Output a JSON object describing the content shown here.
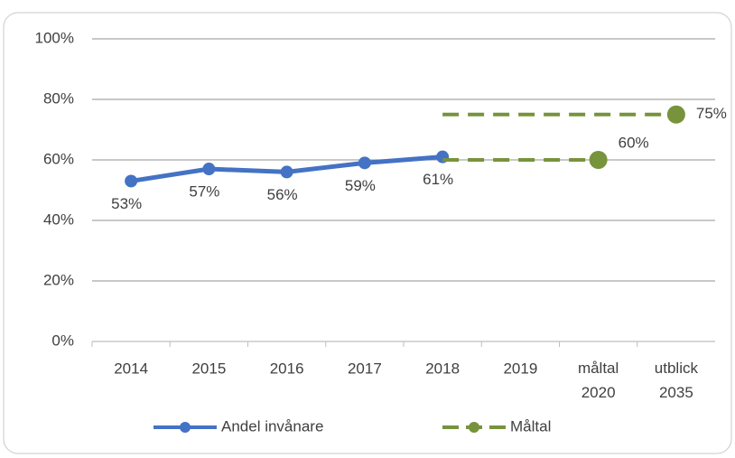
{
  "chart_data": {
    "type": "line",
    "categories": [
      "2014",
      "2015",
      "2016",
      "2017",
      "2018",
      "2019",
      "måltal 2020",
      "utblick 2035"
    ],
    "series": [
      {
        "name": "Andel invånare",
        "color": "#4472c4",
        "dash": false,
        "values": [
          53,
          57,
          56,
          59,
          61,
          null,
          null,
          null
        ],
        "value_labels": [
          "53%",
          "57%",
          "56%",
          "59%",
          "61%",
          null,
          null,
          null
        ]
      },
      {
        "name": "Måltal",
        "color": "#77933c",
        "dash": true,
        "values": [
          null,
          null,
          null,
          null,
          60,
          null,
          60,
          null
        ],
        "value_labels": [
          null,
          null,
          null,
          null,
          null,
          null,
          "60%",
          null
        ]
      },
      {
        "color": "#77933c",
        "dash": true,
        "values": [
          null,
          null,
          null,
          null,
          75,
          null,
          null,
          75
        ],
        "value_labels": [
          null,
          null,
          null,
          null,
          null,
          null,
          null,
          "75%"
        ]
      }
    ],
    "ylim": [
      0,
      100
    ],
    "yticks": [
      {
        "value": 0,
        "label": "0%"
      },
      {
        "value": 20,
        "label": "20%"
      },
      {
        "value": 40,
        "label": "40%"
      },
      {
        "value": 60,
        "label": "60%"
      },
      {
        "value": 80,
        "label": "80%"
      },
      {
        "value": 100,
        "label": "100%"
      }
    ],
    "grid": true,
    "legend": "bottom"
  }
}
